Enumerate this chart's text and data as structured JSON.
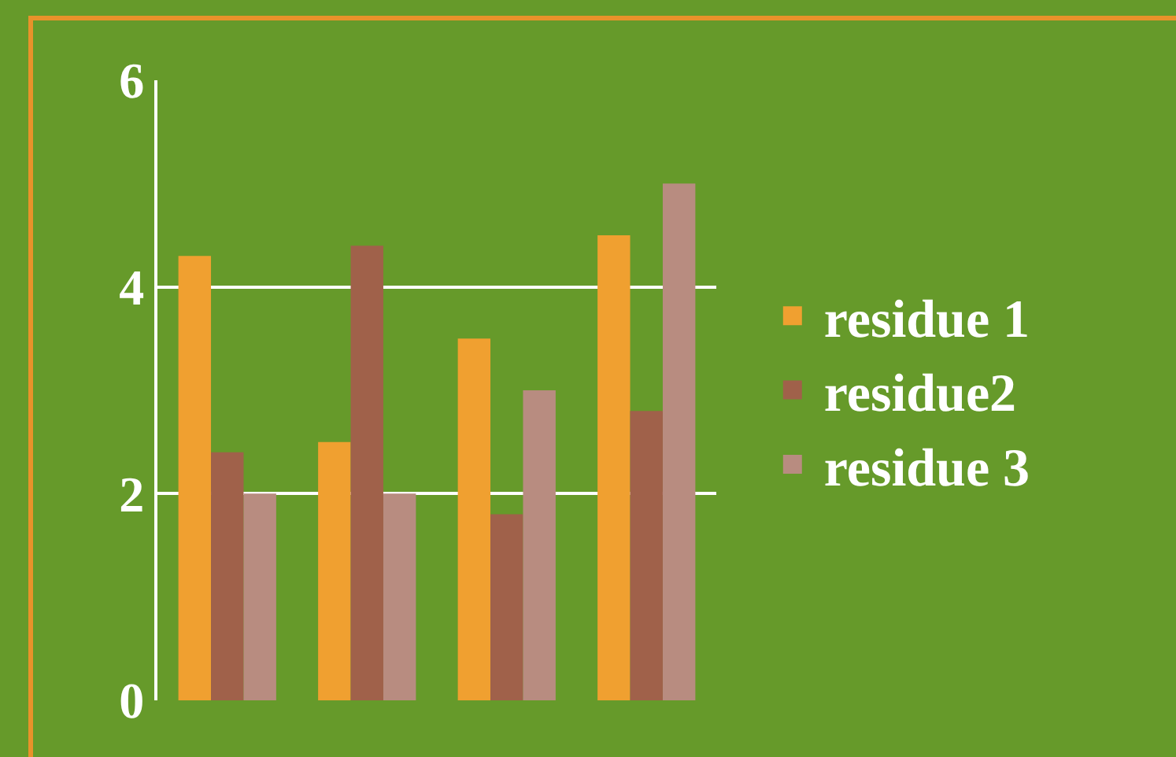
{
  "chart_data": {
    "type": "bar",
    "categories": [
      null,
      null,
      null,
      null
    ],
    "series": [
      {
        "name": "residue 1",
        "color": "#f0a030",
        "values": [
          4.3,
          2.5,
          3.5,
          4.5
        ]
      },
      {
        "name": "residue2",
        "color": "#a0614a",
        "values": [
          2.4,
          4.4,
          1.8,
          2.8
        ]
      },
      {
        "name": "residue 3",
        "color": "#b88c80",
        "values": [
          2.0,
          2.0,
          3.0,
          5.0
        ]
      }
    ],
    "ylim": [
      0,
      6
    ],
    "yticks": [
      0,
      2,
      4,
      6
    ],
    "grid": "y",
    "legend": "right",
    "tick_labels": "y"
  }
}
